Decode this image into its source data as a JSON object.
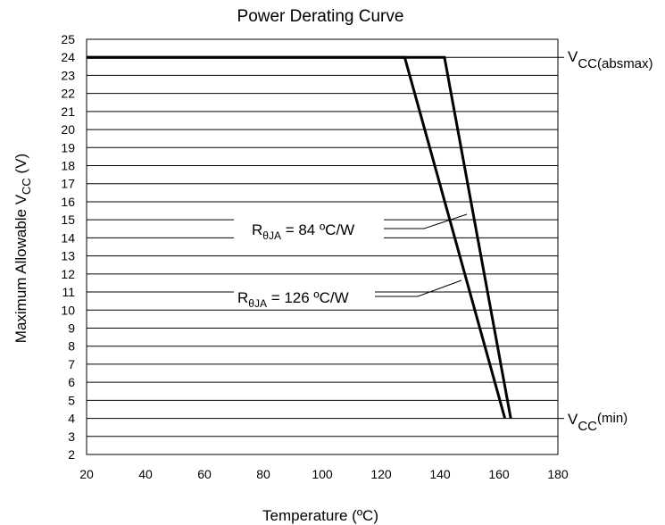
{
  "chart_data": {
    "type": "line",
    "title": "Power Derating Curve",
    "xlabel": "Temperature (ºC)",
    "ylabel": {
      "main": "Maximum Allowable V",
      "sub": "CC",
      "unit": " (V)"
    },
    "xlim": [
      20,
      180
    ],
    "ylim": [
      2,
      25
    ],
    "x_ticks": [
      "20",
      "40",
      "60",
      "80",
      "100",
      "120",
      "140",
      "160",
      "180"
    ],
    "y_ticks": [
      "2",
      "3",
      "4",
      "5",
      "6",
      "7",
      "8",
      "9",
      "10",
      "11",
      "12",
      "13",
      "14",
      "15",
      "16",
      "17",
      "18",
      "19",
      "20",
      "21",
      "22",
      "23",
      "24",
      "25"
    ],
    "grid": "horizontal",
    "series": [
      {
        "name": "RθJA = 84 ºC/W",
        "x": [
          20,
          141.5,
          164
        ],
        "y": [
          24,
          24,
          4
        ]
      },
      {
        "name": "RθJA = 126 ºC/W",
        "x": [
          20,
          128,
          162
        ],
        "y": [
          24,
          24,
          4
        ]
      }
    ],
    "annotations": {
      "r84": {
        "pre": "R",
        "sub": "θJA",
        "post": " = 84 ºC/W"
      },
      "r126": {
        "pre": "R",
        "sub": "θJA",
        "post": " = 126 ºC/W"
      },
      "vcc_absmax": {
        "pre": "V",
        "sub": "CC(absmax)"
      },
      "vcc_min": {
        "pre": "V",
        "sub": "CC",
        "sup": "(min)"
      }
    }
  }
}
